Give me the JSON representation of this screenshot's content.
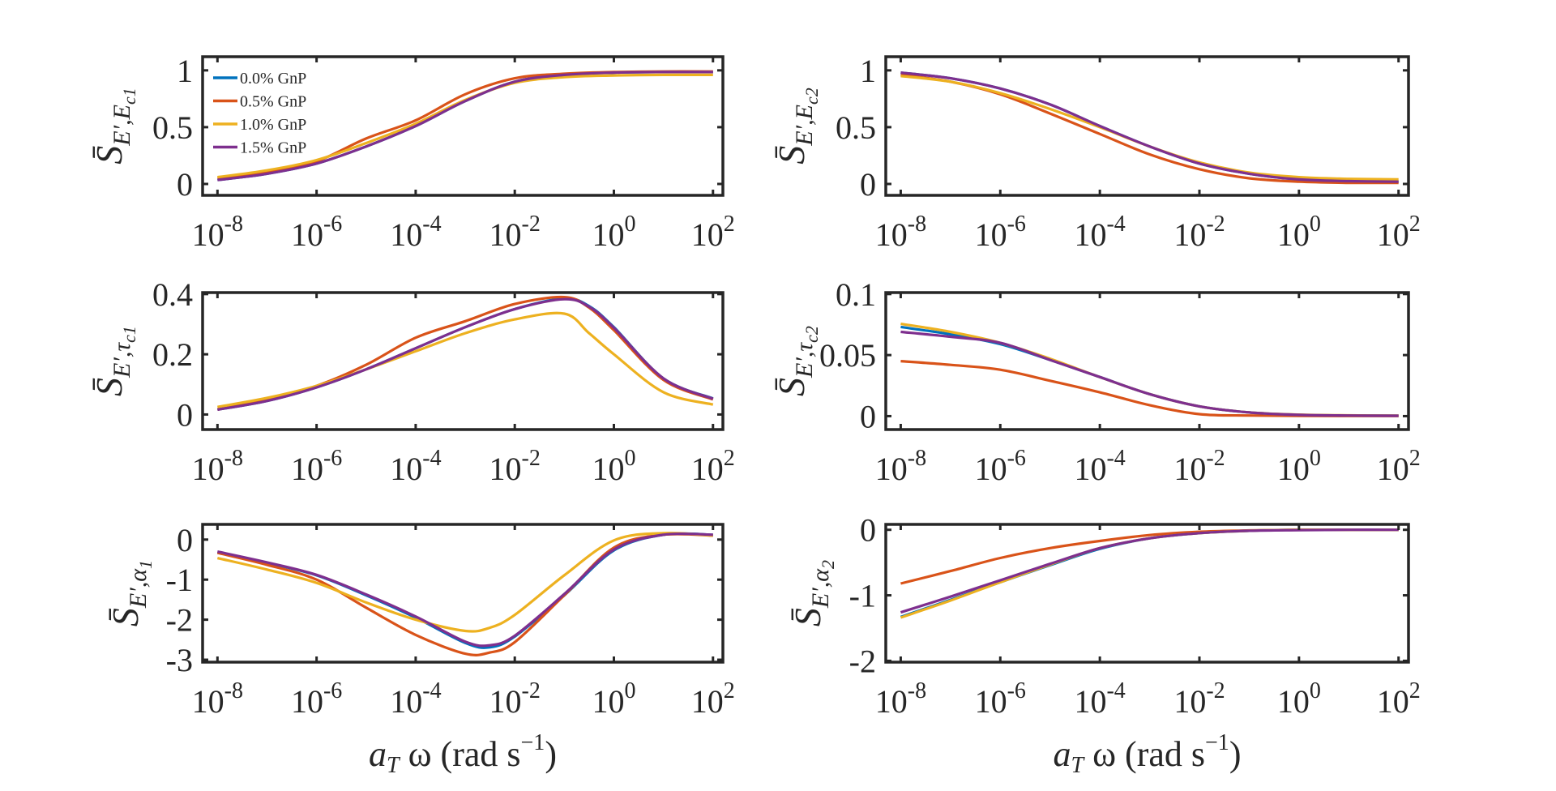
{
  "legend": {
    "placement": "top-left inside first panel",
    "entries": [
      "0.0% GnP",
      "0.5% GnP",
      "1.0% GnP",
      "1.5% GnP"
    ]
  },
  "colors": {
    "series": [
      "#0072BD",
      "#D95319",
      "#EDB120",
      "#7E2F8E"
    ],
    "axes": "#262626"
  },
  "xlabel": {
    "a": "a",
    "a_sub": "T",
    "mid": " ω (rad s",
    "sup": "−1",
    "end": ")"
  },
  "chart_data": [
    {
      "type": "line",
      "xscale": "log",
      "xlim_log10": [
        -8.3,
        2.2
      ],
      "ylim": [
        -0.1,
        1.12
      ],
      "ylabel": {
        "base": "S̄",
        "sub": "E′,E",
        "subsub": "c1"
      },
      "yticks": [
        0,
        0.5,
        1
      ],
      "ytick_labels": [
        "0",
        "0.5",
        "1"
      ],
      "xticks_log10": [
        -8,
        -6,
        -4,
        -2,
        0,
        2
      ],
      "xtick_base": "10",
      "xtick_exponents": [
        "-8",
        "-6",
        "-4",
        "-2",
        "0",
        "2"
      ],
      "x_log10": [
        -8,
        -7,
        -6,
        -5,
        -4,
        -3,
        -2,
        -1,
        0,
        1,
        2
      ],
      "series": [
        {
          "name": "0.0% GnP",
          "values": [
            0.035,
            0.09,
            0.18,
            0.33,
            0.51,
            0.73,
            0.9,
            0.96,
            0.98,
            0.985,
            0.985
          ]
        },
        {
          "name": "0.5% GnP",
          "values": [
            0.05,
            0.11,
            0.2,
            0.4,
            0.56,
            0.79,
            0.93,
            0.97,
            0.985,
            0.99,
            0.99
          ]
        },
        {
          "name": "1.0% GnP",
          "values": [
            0.06,
            0.12,
            0.21,
            0.36,
            0.53,
            0.74,
            0.89,
            0.94,
            0.955,
            0.96,
            0.96
          ]
        },
        {
          "name": "1.5% GnP",
          "values": [
            0.035,
            0.09,
            0.18,
            0.33,
            0.51,
            0.73,
            0.9,
            0.96,
            0.98,
            0.985,
            0.985
          ]
        }
      ]
    },
    {
      "type": "line",
      "xscale": "log",
      "xlim_log10": [
        -8.3,
        2.2
      ],
      "ylim": [
        -0.1,
        1.12
      ],
      "ylabel": {
        "base": "S̄",
        "sub": "E′,E",
        "subsub": "c2"
      },
      "yticks": [
        0,
        0.5,
        1
      ],
      "ytick_labels": [
        "0",
        "0.5",
        "1"
      ],
      "xticks_log10": [
        -8,
        -6,
        -4,
        -2,
        0,
        2
      ],
      "xtick_base": "10",
      "xtick_exponents": [
        "-8",
        "-6",
        "-4",
        "-2",
        "0",
        "2"
      ],
      "x_log10": [
        -8,
        -7,
        -6,
        -5,
        -4,
        -3,
        -2,
        -1,
        0,
        1,
        2
      ],
      "series": [
        {
          "name": "0.0% GnP",
          "values": [
            0.98,
            0.93,
            0.84,
            0.7,
            0.51,
            0.33,
            0.18,
            0.09,
            0.04,
            0.025,
            0.02
          ]
        },
        {
          "name": "0.5% GnP",
          "values": [
            0.96,
            0.9,
            0.79,
            0.62,
            0.44,
            0.26,
            0.13,
            0.05,
            0.02,
            0.01,
            0.01
          ]
        },
        {
          "name": "1.0% GnP",
          "values": [
            0.95,
            0.9,
            0.8,
            0.66,
            0.5,
            0.33,
            0.19,
            0.1,
            0.06,
            0.045,
            0.04
          ]
        },
        {
          "name": "1.5% GnP",
          "values": [
            0.98,
            0.93,
            0.84,
            0.7,
            0.51,
            0.33,
            0.18,
            0.09,
            0.04,
            0.025,
            0.02
          ]
        }
      ]
    },
    {
      "type": "line",
      "xscale": "log",
      "xlim_log10": [
        -8.3,
        2.2
      ],
      "ylim": [
        -0.05,
        0.405
      ],
      "ylabel": {
        "base": "S̄",
        "sub": "E′,τ",
        "subsub": "c1"
      },
      "yticks": [
        0,
        0.2,
        0.4
      ],
      "ytick_labels": [
        "0",
        "0.2",
        "0.4"
      ],
      "xticks_log10": [
        -8,
        -6,
        -4,
        -2,
        0,
        2
      ],
      "xtick_base": "10",
      "xtick_exponents": [
        "-8",
        "-6",
        "-4",
        "-2",
        "0",
        "2"
      ],
      "x_log10": [
        -8,
        -7,
        -6,
        -5,
        -4,
        -3,
        -2,
        -1,
        -0.5,
        0,
        1,
        2
      ],
      "series": [
        {
          "name": "0.0% GnP",
          "values": [
            0.016,
            0.045,
            0.09,
            0.15,
            0.22,
            0.29,
            0.35,
            0.385,
            0.36,
            0.29,
            0.12,
            0.053
          ]
        },
        {
          "name": "0.5% GnP",
          "values": [
            0.016,
            0.05,
            0.095,
            0.165,
            0.255,
            0.31,
            0.367,
            0.39,
            0.355,
            0.28,
            0.115,
            0.05
          ]
        },
        {
          "name": "1.0% GnP",
          "values": [
            0.025,
            0.055,
            0.095,
            0.15,
            0.21,
            0.27,
            0.316,
            0.335,
            0.27,
            0.2,
            0.074,
            0.033
          ]
        },
        {
          "name": "1.5% GnP",
          "values": [
            0.016,
            0.045,
            0.09,
            0.15,
            0.22,
            0.29,
            0.35,
            0.383,
            0.358,
            0.288,
            0.12,
            0.052
          ]
        }
      ]
    },
    {
      "type": "line",
      "xscale": "log",
      "xlim_log10": [
        -8.3,
        2.2
      ],
      "ylim": [
        -0.011,
        0.1012
      ],
      "ylabel": {
        "base": "S̄",
        "sub": "E′,τ",
        "subsub": "c2"
      },
      "yticks": [
        0,
        0.05,
        0.1
      ],
      "ytick_labels": [
        "0",
        "0.05",
        "0.1"
      ],
      "xticks_log10": [
        -8,
        -6,
        -4,
        -2,
        0,
        2
      ],
      "xtick_base": "10",
      "xtick_exponents": [
        "-8",
        "-6",
        "-4",
        "-2",
        "0",
        "2"
      ],
      "x_log10": [
        -8,
        -7,
        -6,
        -5,
        -4,
        -3,
        -2,
        -1,
        0,
        1,
        2
      ],
      "series": [
        {
          "name": "0.0% GnP",
          "values": [
            0.073,
            0.067,
            0.059,
            0.046,
            0.032,
            0.018,
            0.008,
            0.003,
            0.001,
            0.0005,
            0.0003
          ]
        },
        {
          "name": "0.5% GnP",
          "values": [
            0.045,
            0.042,
            0.038,
            0.029,
            0.0195,
            0.009,
            0.0016,
            0.0005,
            0.0002,
            0.0001,
            0.0001
          ]
        },
        {
          "name": "1.0% GnP",
          "values": [
            0.0756,
            0.069,
            0.06,
            0.047,
            0.032,
            0.018,
            0.008,
            0.003,
            0.0012,
            0.0006,
            0.0004
          ]
        },
        {
          "name": "1.5% GnP",
          "values": [
            0.069,
            0.065,
            0.06,
            0.046,
            0.032,
            0.018,
            0.008,
            0.003,
            0.001,
            0.0005,
            0.0003
          ]
        }
      ]
    },
    {
      "type": "line",
      "xscale": "log",
      "xlim_log10": [
        -8.3,
        2.2
      ],
      "ylim": [
        -3.06,
        0.38
      ],
      "ylabel": {
        "base": "S̄",
        "sub": "E′,α",
        "subsub": "1"
      },
      "yticks": [
        -3,
        -2,
        -1,
        0
      ],
      "ytick_labels": [
        "-3",
        "-2",
        "-1",
        "0"
      ],
      "xticks_log10": [
        -8,
        -6,
        -4,
        -2,
        0,
        2
      ],
      "xtick_base": "10",
      "xtick_exponents": [
        "-8",
        "-6",
        "-4",
        "-2",
        "0",
        "2"
      ],
      "x_log10": [
        -8,
        -7,
        -6,
        -5,
        -4,
        -3,
        -2.5,
        -2,
        -1,
        0,
        1,
        2
      ],
      "series": [
        {
          "name": "0.0% GnP",
          "values": [
            -0.31,
            -0.58,
            -0.89,
            -1.39,
            -1.95,
            -2.58,
            -2.69,
            -2.42,
            -1.39,
            -0.27,
            0.12,
            0.12
          ]
        },
        {
          "name": "0.5% GnP",
          "values": [
            -0.33,
            -0.63,
            -1.0,
            -1.7,
            -2.38,
            -2.85,
            -2.82,
            -2.56,
            -1.39,
            -0.2,
            0.12,
            0.1
          ]
        },
        {
          "name": "1.0% GnP",
          "values": [
            -0.46,
            -0.75,
            -1.08,
            -1.57,
            -2.0,
            -2.28,
            -2.2,
            -1.88,
            -0.89,
            -0.02,
            0.16,
            0.1
          ]
        },
        {
          "name": "1.5% GnP",
          "values": [
            -0.3,
            -0.57,
            -0.88,
            -1.37,
            -1.92,
            -2.55,
            -2.64,
            -2.4,
            -1.36,
            -0.25,
            0.12,
            0.12
          ]
        }
      ]
    },
    {
      "type": "line",
      "xscale": "log",
      "xlim_log10": [
        -8.3,
        2.2
      ],
      "ylim": [
        -2.02,
        0.083
      ],
      "ylabel": {
        "base": "S̄",
        "sub": "E′,α",
        "subsub": "2"
      },
      "yticks": [
        -2,
        -1,
        0
      ],
      "ytick_labels": [
        "-2",
        "-1",
        "0"
      ],
      "xticks_log10": [
        -8,
        -6,
        -4,
        -2,
        0,
        2
      ],
      "xtick_base": "10",
      "xtick_exponents": [
        "-8",
        "-6",
        "-4",
        "-2",
        "0",
        "2"
      ],
      "x_log10": [
        -8,
        -7,
        -6,
        -5,
        -4,
        -3,
        -2,
        -1,
        0,
        1,
        2
      ],
      "series": [
        {
          "name": "0.0% GnP",
          "values": [
            -1.33,
            -1.07,
            -0.8,
            -0.54,
            -0.29,
            -0.13,
            -0.05,
            -0.015,
            0,
            0,
            0
          ]
        },
        {
          "name": "0.5% GnP",
          "values": [
            -0.82,
            -0.63,
            -0.43,
            -0.28,
            -0.17,
            -0.08,
            -0.03,
            -0.01,
            0,
            0,
            0
          ]
        },
        {
          "name": "1.0% GnP",
          "values": [
            -1.34,
            -1.08,
            -0.8,
            -0.53,
            -0.28,
            -0.13,
            -0.05,
            -0.015,
            0,
            0,
            0
          ]
        },
        {
          "name": "1.5% GnP",
          "values": [
            -1.26,
            -1.02,
            -0.77,
            -0.52,
            -0.28,
            -0.13,
            -0.05,
            -0.015,
            -0.005,
            0,
            0
          ]
        }
      ]
    }
  ]
}
